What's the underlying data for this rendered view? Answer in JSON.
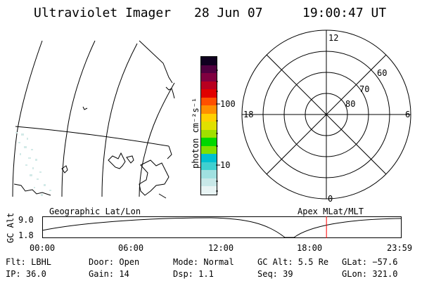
{
  "header": {
    "title": "Ultraviolet Imager",
    "date": "28 Jun 07",
    "time": "19:00:47 UT"
  },
  "colorbar": {
    "unit_label": "photon cm⁻²s⁻¹",
    "tick_100": "100",
    "tick_10": "10",
    "colors": [
      "#e8f4f4",
      "#c8e8e8",
      "#a0e0e0",
      "#40d0d0",
      "#00c0d0",
      "#80e000",
      "#00d800",
      "#a0e000",
      "#e0e000",
      "#ffd000",
      "#ff9000",
      "#ff5000",
      "#e00000",
      "#b80020",
      "#800040",
      "#500040",
      "#100020"
    ]
  },
  "polar_plot": {
    "mlt_12": "12",
    "mlt_18": "18",
    "mlt_6": "6",
    "mlt_0": "0",
    "lat_60": "60",
    "lat_70": "70",
    "lat_80": "80"
  },
  "timeline": {
    "left_label": "Geographic Lat/Lon",
    "right_label": "Apex MLat/MLT",
    "y_axis_title": "GC Alt",
    "y_top": "9.0",
    "y_bottom": "1.8",
    "x_ticks": [
      "00:00",
      "06:00",
      "12:00",
      "18:00",
      "23:59"
    ],
    "current_time_hours": 19.01,
    "marker_color": "#ff0000"
  },
  "status": {
    "flt": "Flt: LBHL",
    "ip": "IP: 36.0",
    "door": "Door: Open",
    "gain": "Gain: 14",
    "mode": "Mode: Normal",
    "dsp": "Dsp:   1.1",
    "gc_alt": "GC Alt: 5.5 Re",
    "seq": "Seq: 39",
    "glat": "GLat: −57.6",
    "glon": "GLon: 321.0"
  }
}
